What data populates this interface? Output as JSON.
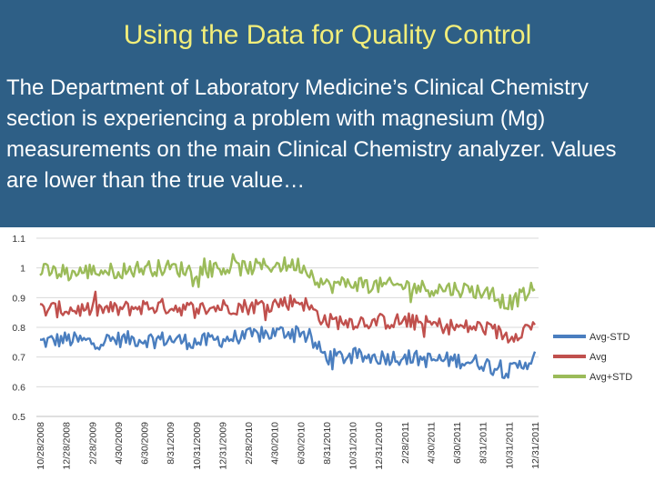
{
  "slide": {
    "title": "Using the Data for Quality Control",
    "body": "The Department of Laboratory Medicine’s Clinical Chemistry section is experiencing a problem with magnesium (Mg) measurements on the main Clinical Chemistry analyzer. Values are lower than the true value…"
  },
  "colors": {
    "background": "#2e5f86",
    "title": "#f2ee7a",
    "avg_minus_std": "#4a7ebf",
    "avg": "#c0504d",
    "avg_plus_std": "#9bbb59"
  },
  "chart_data": {
    "type": "line",
    "title": "",
    "xlabel": "",
    "ylabel": "",
    "ylim": [
      0.5,
      1.1
    ],
    "y_ticks": [
      "1.1",
      "1",
      "0.9",
      "0.8",
      "0.7",
      "0.6",
      "0.5"
    ],
    "x_tick_labels": [
      "10/28/2008",
      "12/28/2008",
      "2/28/2009",
      "4/30/2009",
      "6/30/2009",
      "8/31/2009",
      "10/31/2009",
      "12/31/2009",
      "2/28/2010",
      "4/30/2010",
      "6/30/2010",
      "8/31/2010",
      "10/31/2010",
      "12/31/2010",
      "2/28/2011",
      "4/30/2011",
      "6/30/2011",
      "8/31/2011",
      "10/31/2011",
      "12/31/2011"
    ],
    "legend_position": "right",
    "series": [
      {
        "name": "Avg-STD",
        "color": "#4a7ebf",
        "approx_values_per_tick": [
          0.75,
          0.76,
          0.75,
          0.76,
          0.76,
          0.76,
          0.75,
          0.76,
          0.77,
          0.78,
          0.79,
          0.7,
          0.7,
          0.7,
          0.7,
          0.69,
          0.69,
          0.68,
          0.65,
          0.7
        ]
      },
      {
        "name": "Avg",
        "color": "#c0504d",
        "approx_values_per_tick": [
          0.86,
          0.86,
          0.86,
          0.86,
          0.87,
          0.87,
          0.86,
          0.87,
          0.87,
          0.88,
          0.89,
          0.82,
          0.82,
          0.82,
          0.82,
          0.81,
          0.8,
          0.8,
          0.77,
          0.81
        ]
      },
      {
        "name": "Avg+STD",
        "color": "#9bbb59",
        "approx_values_per_tick": [
          0.99,
          0.98,
          0.99,
          0.99,
          1.0,
          1.0,
          0.99,
          1.0,
          1.0,
          1.01,
          1.01,
          0.94,
          0.95,
          0.94,
          0.94,
          0.93,
          0.93,
          0.92,
          0.88,
          0.93
        ]
      }
    ]
  }
}
